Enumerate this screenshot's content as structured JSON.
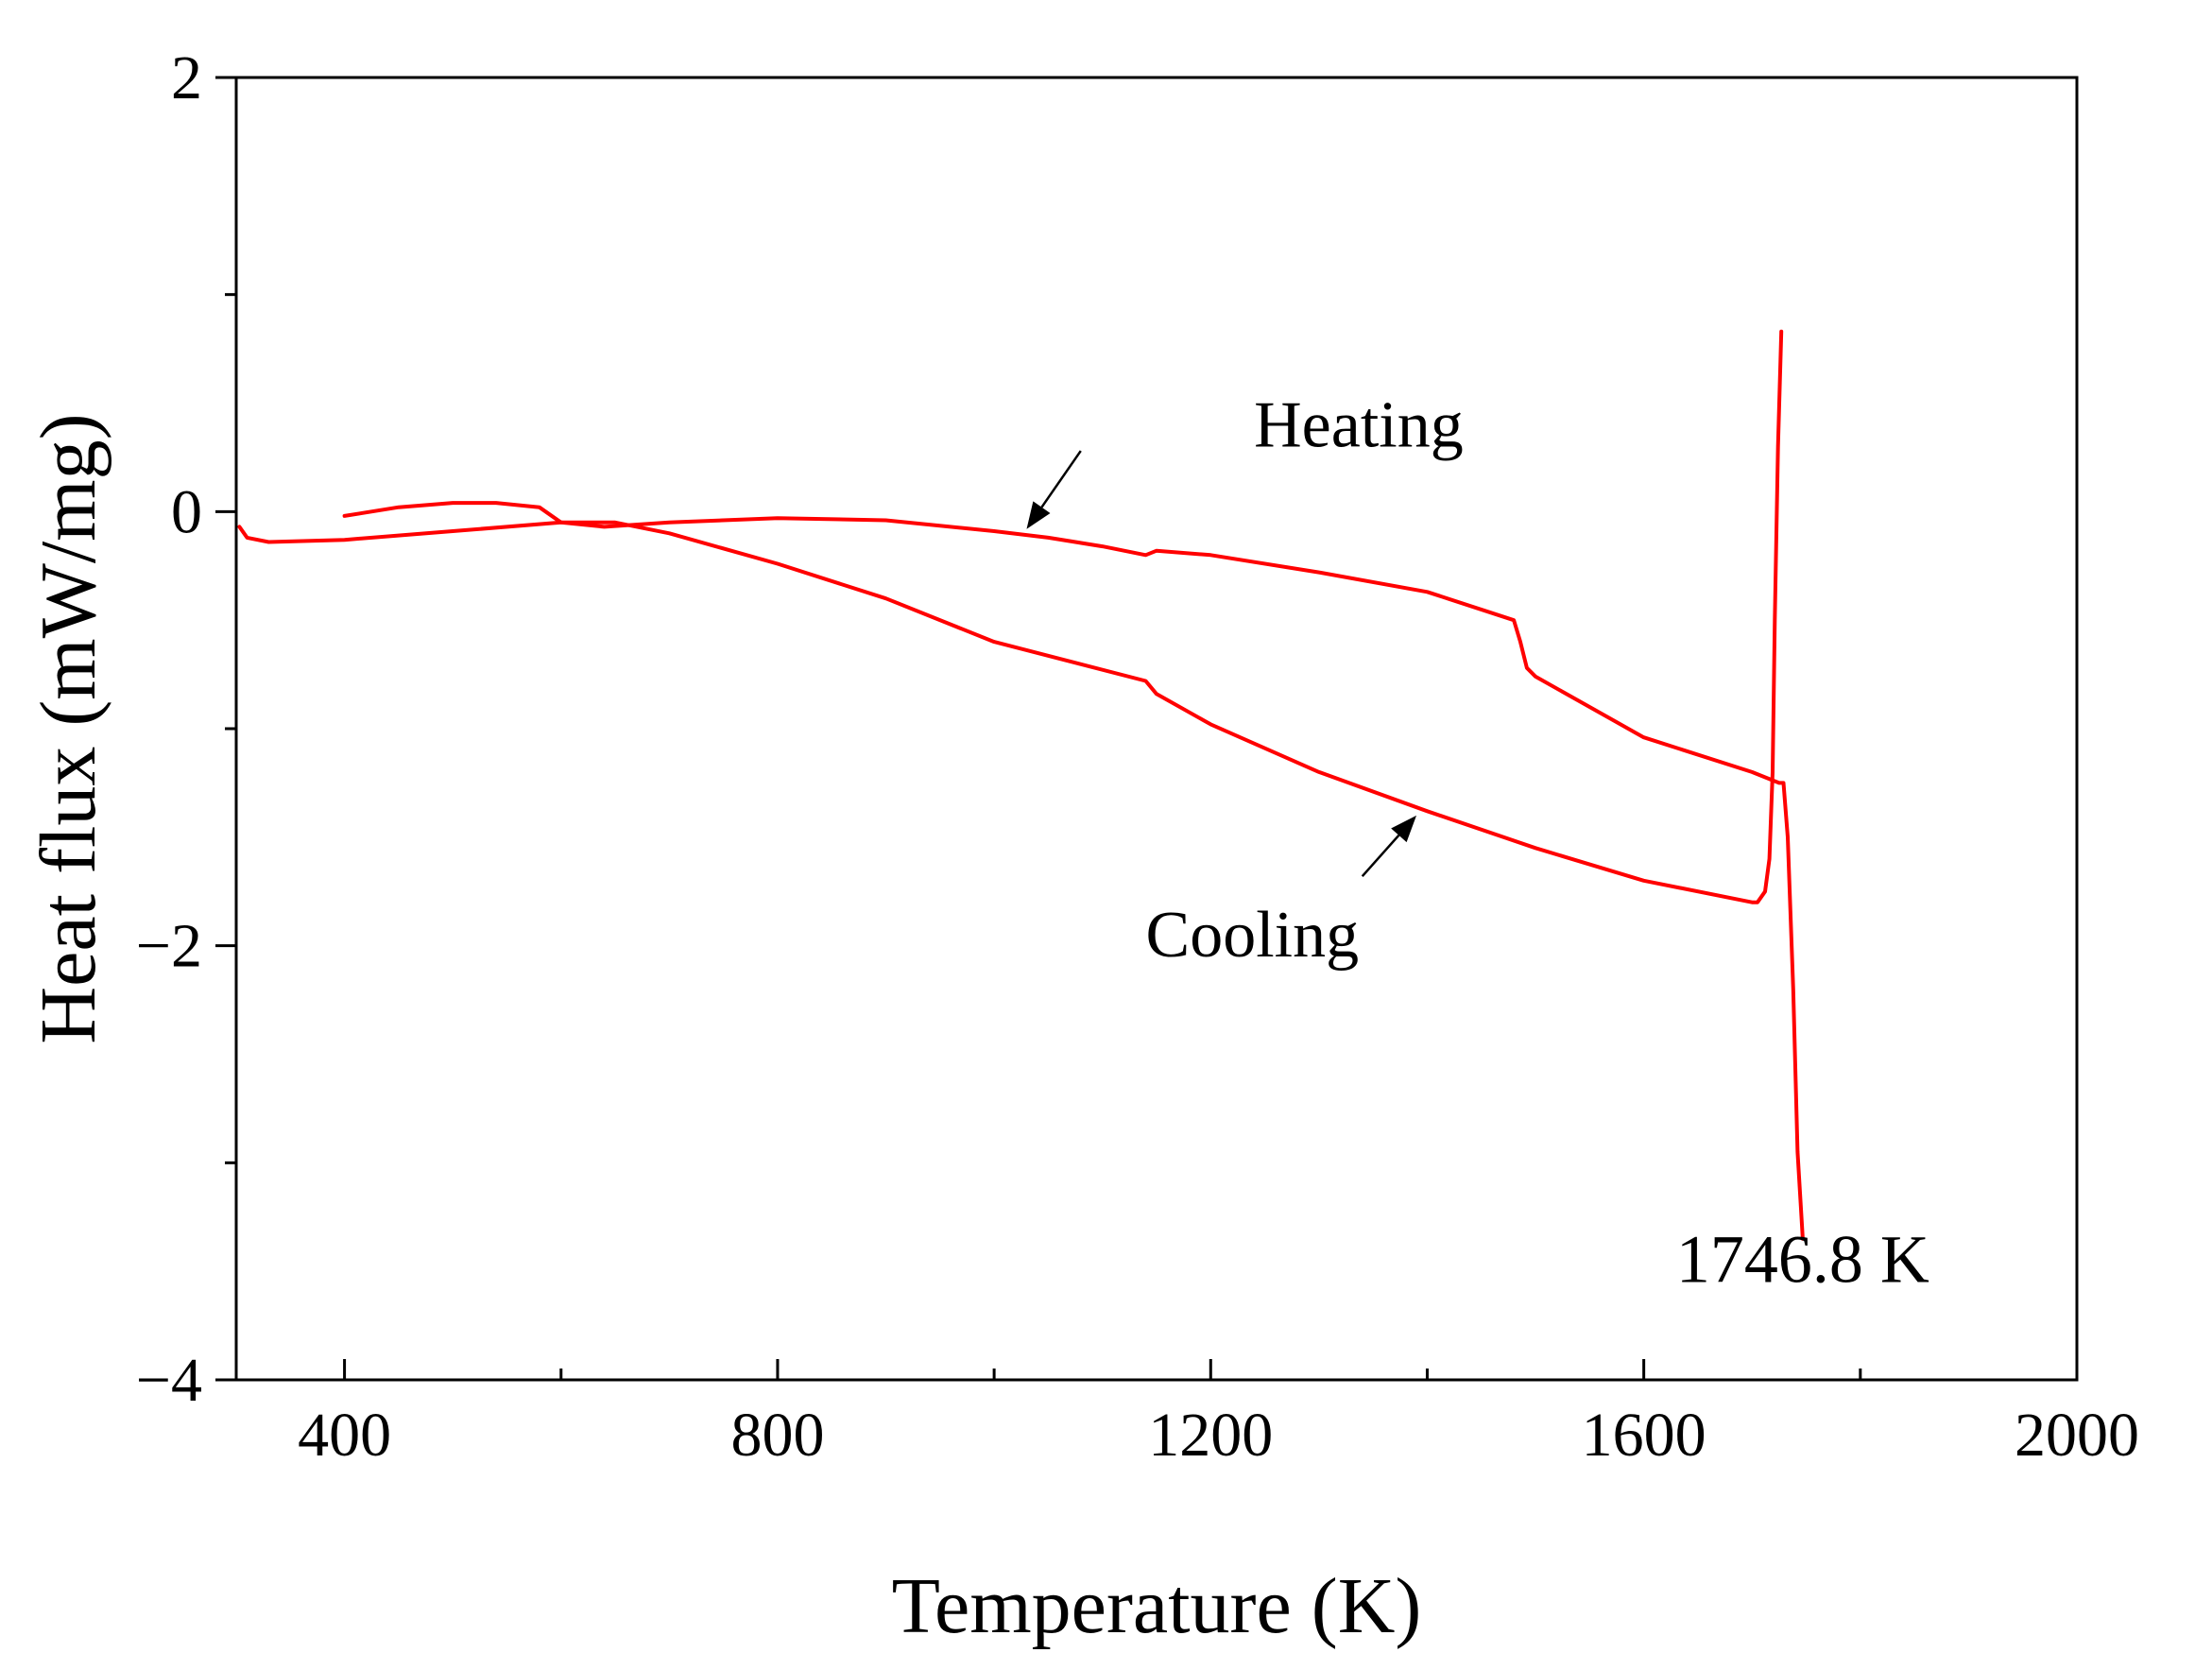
{
  "chart_data": {
    "type": "line",
    "title": "",
    "xlabel": "Temperature (K)",
    "ylabel": "Heat flux (mW/mg)",
    "xlim": [
      300,
      2000
    ],
    "ylim": [
      -4,
      2
    ],
    "x_ticks": [
      400,
      800,
      1200,
      1600,
      2000
    ],
    "x_minor_ticks": [
      600,
      1000,
      1400,
      1800
    ],
    "y_ticks": [
      -4,
      -2,
      0,
      2
    ],
    "y_minor_ticks": [
      -3,
      -1,
      1
    ],
    "tick_labels_x": [
      "400",
      "800",
      "1200",
      "1600",
      "2000"
    ],
    "tick_labels_y": [
      "−4",
      "−2",
      "0",
      "2"
    ],
    "grid": false,
    "line_color": "#ff0000",
    "series": [
      {
        "role": "heating",
        "x": [
          400,
          450,
          500,
          540,
          580,
          600,
          640,
          700,
          800,
          900,
          1000,
          1050,
          1100,
          1140,
          1150,
          1200,
          1300,
          1400,
          1480,
          1486,
          1492,
          1500,
          1600,
          1700,
          1725,
          1729,
          1733,
          1738,
          1742,
          1746.8
        ],
        "y": [
          -0.02,
          0.02,
          0.04,
          0.04,
          0.02,
          -0.05,
          -0.07,
          -0.05,
          -0.03,
          -0.04,
          -0.09,
          -0.12,
          -0.16,
          -0.2,
          -0.18,
          -0.2,
          -0.28,
          -0.37,
          -0.5,
          -0.6,
          -0.72,
          -0.76,
          -1.04,
          -1.2,
          -1.25,
          -1.25,
          -1.5,
          -2.2,
          -2.95,
          -3.35
        ]
      },
      {
        "role": "cooling",
        "x": [
          1727,
          1724,
          1721,
          1719,
          1716,
          1712,
          1705,
          1700,
          1600,
          1500,
          1400,
          1300,
          1200,
          1150,
          1140,
          1000,
          900,
          800,
          700,
          650,
          600,
          500,
          400,
          330,
          310,
          303
        ],
        "y": [
          0.83,
          0.3,
          -0.5,
          -1.2,
          -1.6,
          -1.75,
          -1.8,
          -1.8,
          -1.7,
          -1.55,
          -1.38,
          -1.2,
          -0.98,
          -0.84,
          -0.78,
          -0.6,
          -0.4,
          -0.24,
          -0.1,
          -0.05,
          -0.05,
          -0.09,
          -0.13,
          -0.14,
          -0.12,
          -0.07
        ]
      }
    ],
    "annotations": [
      {
        "text": "Heating",
        "x": 1240,
        "y": 0.3,
        "arrow_from": [
          1080,
          0.28
        ],
        "arrow_to": [
          1030,
          -0.08
        ]
      },
      {
        "text": "Cooling",
        "x": 1140,
        "y": -2.05,
        "arrow_from": [
          1340,
          -1.68
        ],
        "arrow_to": [
          1390,
          -1.4
        ]
      },
      {
        "text": "1746.8 K",
        "x": 1746.8,
        "y": -3.55
      }
    ]
  }
}
